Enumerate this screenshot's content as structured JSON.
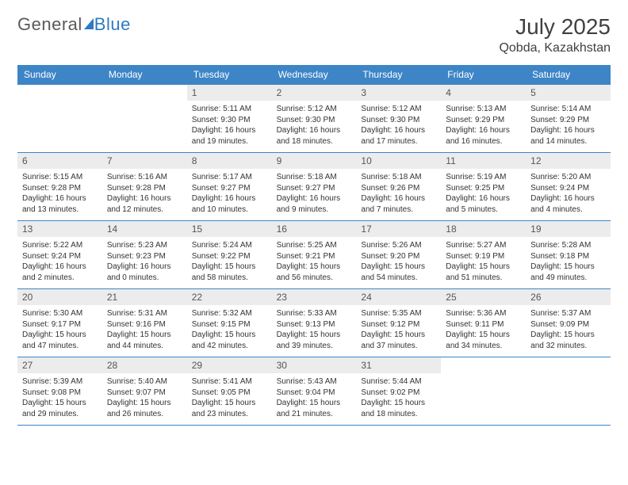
{
  "brand": {
    "part1": "General",
    "part2": "Blue"
  },
  "title": "July 2025",
  "location": "Qobda, Kazakhstan",
  "colors": {
    "header_bg": "#3d85c6",
    "header_text": "#ffffff",
    "rule": "#3d85c6",
    "daynum_bg": "#ececec",
    "body_text": "#333333",
    "title_text": "#404040"
  },
  "weekdays": [
    "Sunday",
    "Monday",
    "Tuesday",
    "Wednesday",
    "Thursday",
    "Friday",
    "Saturday"
  ],
  "first_weekday_index": 2,
  "days": [
    {
      "n": 1,
      "sunrise": "5:11 AM",
      "sunset": "9:30 PM",
      "dl_h": 16,
      "dl_m": 19
    },
    {
      "n": 2,
      "sunrise": "5:12 AM",
      "sunset": "9:30 PM",
      "dl_h": 16,
      "dl_m": 18
    },
    {
      "n": 3,
      "sunrise": "5:12 AM",
      "sunset": "9:30 PM",
      "dl_h": 16,
      "dl_m": 17
    },
    {
      "n": 4,
      "sunrise": "5:13 AM",
      "sunset": "9:29 PM",
      "dl_h": 16,
      "dl_m": 16
    },
    {
      "n": 5,
      "sunrise": "5:14 AM",
      "sunset": "9:29 PM",
      "dl_h": 16,
      "dl_m": 14
    },
    {
      "n": 6,
      "sunrise": "5:15 AM",
      "sunset": "9:28 PM",
      "dl_h": 16,
      "dl_m": 13
    },
    {
      "n": 7,
      "sunrise": "5:16 AM",
      "sunset": "9:28 PM",
      "dl_h": 16,
      "dl_m": 12
    },
    {
      "n": 8,
      "sunrise": "5:17 AM",
      "sunset": "9:27 PM",
      "dl_h": 16,
      "dl_m": 10
    },
    {
      "n": 9,
      "sunrise": "5:18 AM",
      "sunset": "9:27 PM",
      "dl_h": 16,
      "dl_m": 9
    },
    {
      "n": 10,
      "sunrise": "5:18 AM",
      "sunset": "9:26 PM",
      "dl_h": 16,
      "dl_m": 7
    },
    {
      "n": 11,
      "sunrise": "5:19 AM",
      "sunset": "9:25 PM",
      "dl_h": 16,
      "dl_m": 5
    },
    {
      "n": 12,
      "sunrise": "5:20 AM",
      "sunset": "9:24 PM",
      "dl_h": 16,
      "dl_m": 4
    },
    {
      "n": 13,
      "sunrise": "5:22 AM",
      "sunset": "9:24 PM",
      "dl_h": 16,
      "dl_m": 2
    },
    {
      "n": 14,
      "sunrise": "5:23 AM",
      "sunset": "9:23 PM",
      "dl_h": 16,
      "dl_m": 0
    },
    {
      "n": 15,
      "sunrise": "5:24 AM",
      "sunset": "9:22 PM",
      "dl_h": 15,
      "dl_m": 58
    },
    {
      "n": 16,
      "sunrise": "5:25 AM",
      "sunset": "9:21 PM",
      "dl_h": 15,
      "dl_m": 56
    },
    {
      "n": 17,
      "sunrise": "5:26 AM",
      "sunset": "9:20 PM",
      "dl_h": 15,
      "dl_m": 54
    },
    {
      "n": 18,
      "sunrise": "5:27 AM",
      "sunset": "9:19 PM",
      "dl_h": 15,
      "dl_m": 51
    },
    {
      "n": 19,
      "sunrise": "5:28 AM",
      "sunset": "9:18 PM",
      "dl_h": 15,
      "dl_m": 49
    },
    {
      "n": 20,
      "sunrise": "5:30 AM",
      "sunset": "9:17 PM",
      "dl_h": 15,
      "dl_m": 47
    },
    {
      "n": 21,
      "sunrise": "5:31 AM",
      "sunset": "9:16 PM",
      "dl_h": 15,
      "dl_m": 44
    },
    {
      "n": 22,
      "sunrise": "5:32 AM",
      "sunset": "9:15 PM",
      "dl_h": 15,
      "dl_m": 42
    },
    {
      "n": 23,
      "sunrise": "5:33 AM",
      "sunset": "9:13 PM",
      "dl_h": 15,
      "dl_m": 39
    },
    {
      "n": 24,
      "sunrise": "5:35 AM",
      "sunset": "9:12 PM",
      "dl_h": 15,
      "dl_m": 37
    },
    {
      "n": 25,
      "sunrise": "5:36 AM",
      "sunset": "9:11 PM",
      "dl_h": 15,
      "dl_m": 34
    },
    {
      "n": 26,
      "sunrise": "5:37 AM",
      "sunset": "9:09 PM",
      "dl_h": 15,
      "dl_m": 32
    },
    {
      "n": 27,
      "sunrise": "5:39 AM",
      "sunset": "9:08 PM",
      "dl_h": 15,
      "dl_m": 29
    },
    {
      "n": 28,
      "sunrise": "5:40 AM",
      "sunset": "9:07 PM",
      "dl_h": 15,
      "dl_m": 26
    },
    {
      "n": 29,
      "sunrise": "5:41 AM",
      "sunset": "9:05 PM",
      "dl_h": 15,
      "dl_m": 23
    },
    {
      "n": 30,
      "sunrise": "5:43 AM",
      "sunset": "9:04 PM",
      "dl_h": 15,
      "dl_m": 21
    },
    {
      "n": 31,
      "sunrise": "5:44 AM",
      "sunset": "9:02 PM",
      "dl_h": 15,
      "dl_m": 18
    }
  ],
  "labels": {
    "sunrise": "Sunrise: ",
    "sunset": "Sunset: ",
    "daylight1": "Daylight: ",
    "daylight2": " hours and ",
    "daylight3": " minutes."
  }
}
